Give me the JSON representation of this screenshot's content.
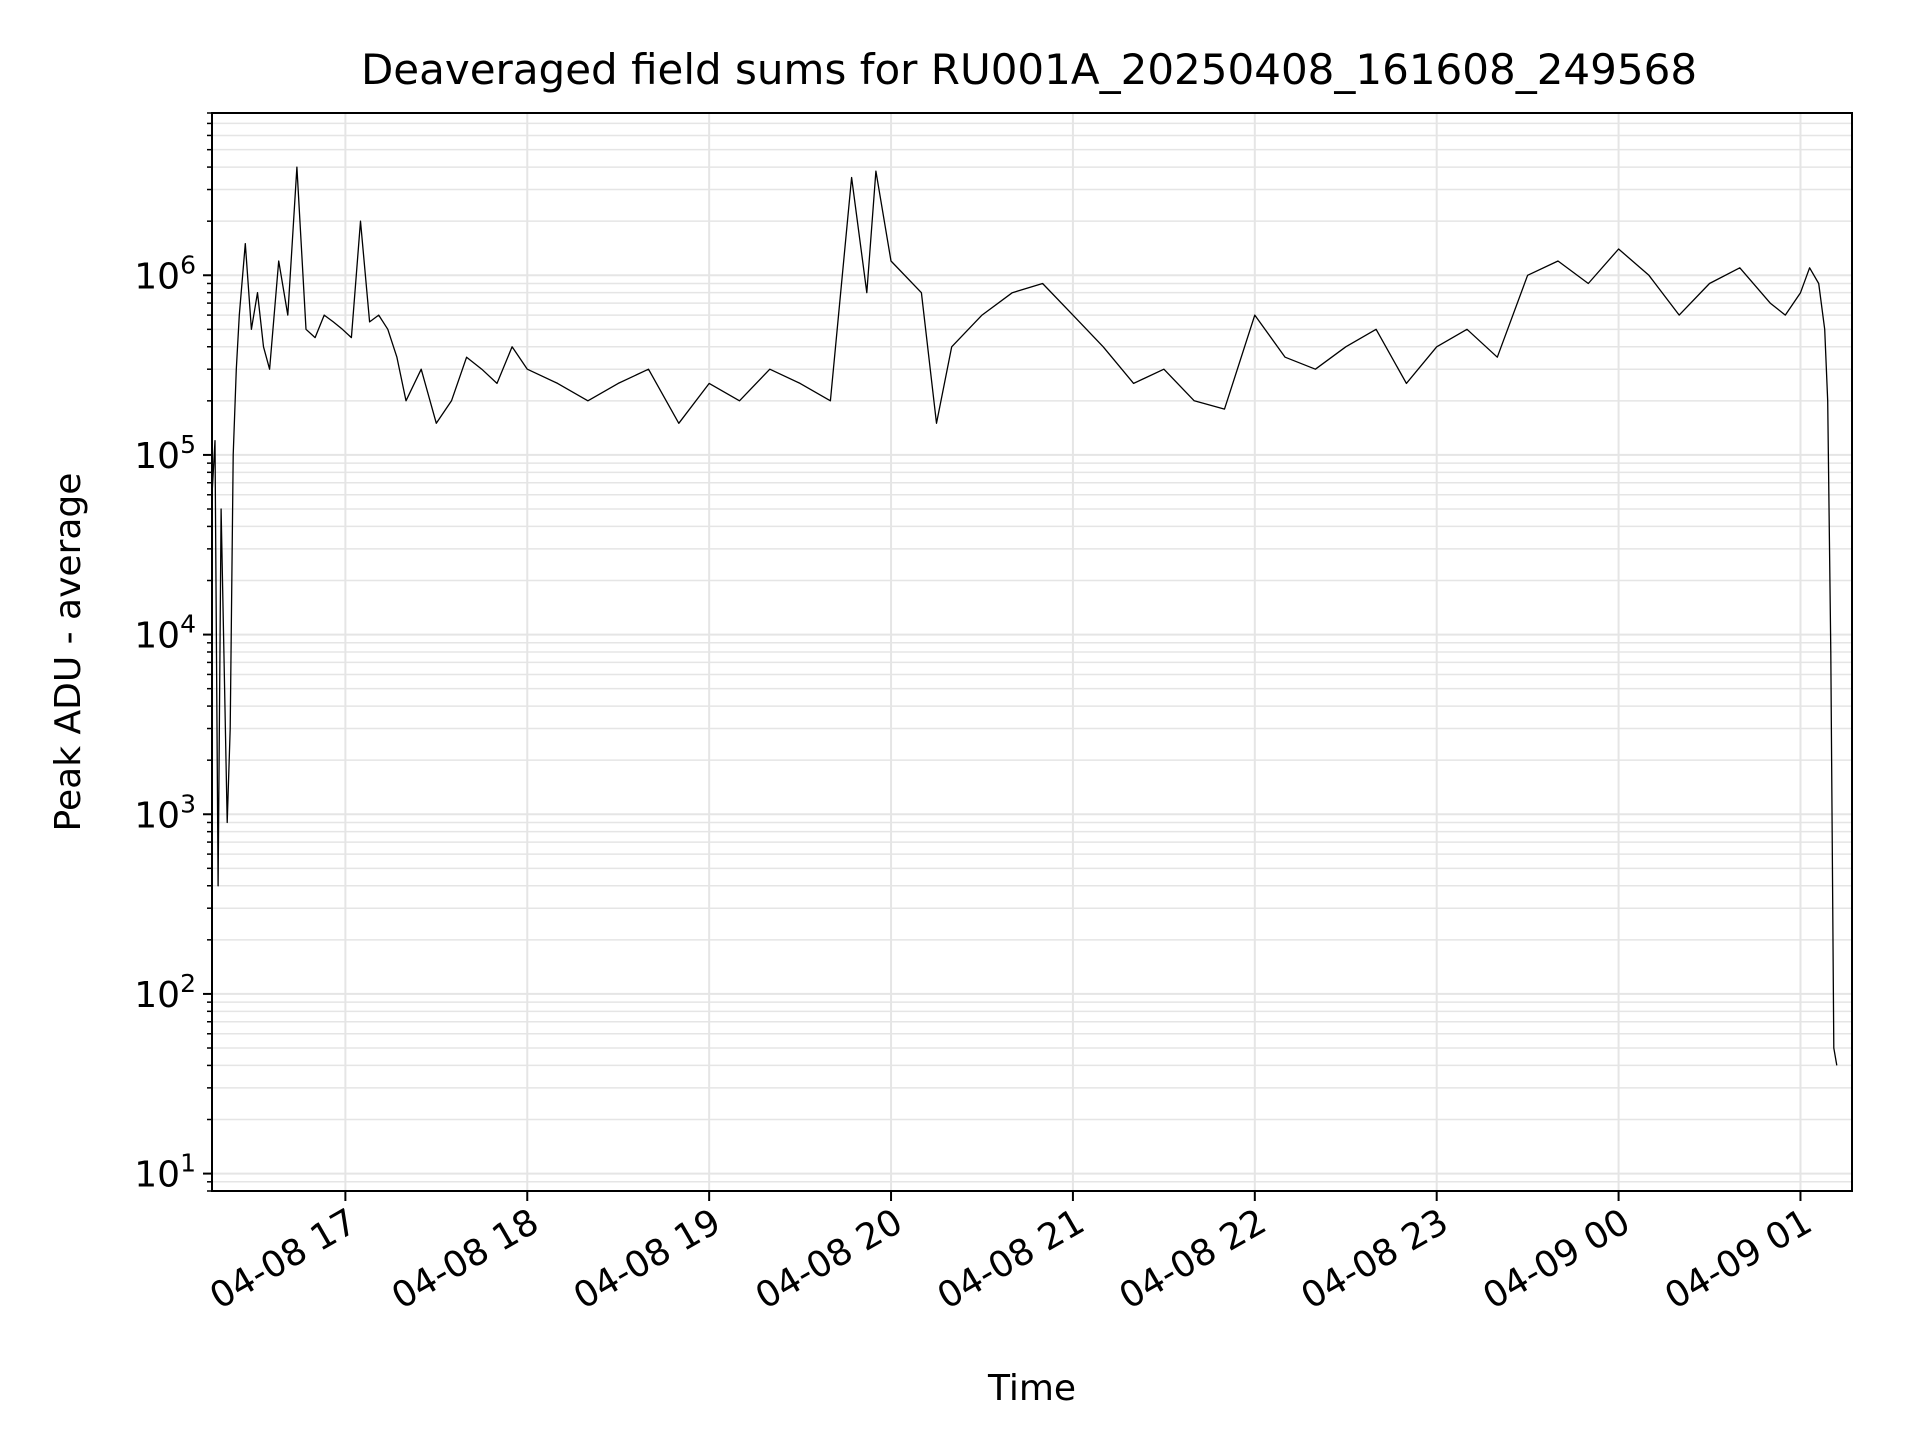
{
  "chart_data": {
    "type": "line",
    "title": "Deaveraged field sums for RU001A_20250408_161608_249568",
    "xlabel": "Time",
    "ylabel": "Peak ADU - average",
    "yscale": "log",
    "ylim": [
      8,
      8000000
    ],
    "xlim": [
      "2025-04-08T16:16",
      "2025-04-09T01:17"
    ],
    "grid": "major and minor",
    "line_color": "#000000",
    "grid_color": "#e5e5e5",
    "x_ticks": [
      {
        "t": "2025-04-08T17:00",
        "label": "04-08 17"
      },
      {
        "t": "2025-04-08T18:00",
        "label": "04-08 18"
      },
      {
        "t": "2025-04-08T19:00",
        "label": "04-08 19"
      },
      {
        "t": "2025-04-08T20:00",
        "label": "04-08 20"
      },
      {
        "t": "2025-04-08T21:00",
        "label": "04-08 21"
      },
      {
        "t": "2025-04-08T22:00",
        "label": "04-08 22"
      },
      {
        "t": "2025-04-08T23:00",
        "label": "04-08 23"
      },
      {
        "t": "2025-04-09T00:00",
        "label": "04-09 00"
      },
      {
        "t": "2025-04-09T01:00",
        "label": "04-09 01"
      }
    ],
    "y_ticks": [
      {
        "value": 10,
        "base": "10",
        "exp": "1"
      },
      {
        "value": 100,
        "base": "10",
        "exp": "2"
      },
      {
        "value": 1000,
        "base": "10",
        "exp": "3"
      },
      {
        "value": 10000,
        "base": "10",
        "exp": "4"
      },
      {
        "value": 100000,
        "base": "10",
        "exp": "5"
      },
      {
        "value": 1000000,
        "base": "10",
        "exp": "6"
      }
    ],
    "series": [
      {
        "x": [
          "2025-04-08T16:16",
          "2025-04-08T16:17",
          "2025-04-08T16:18",
          "2025-04-08T16:19",
          "2025-04-08T16:20",
          "2025-04-08T16:21",
          "2025-04-08T16:22",
          "2025-04-08T16:23",
          "2025-04-08T16:24",
          "2025-04-08T16:25",
          "2025-04-08T16:27",
          "2025-04-08T16:29",
          "2025-04-08T16:31",
          "2025-04-08T16:33",
          "2025-04-08T16:35",
          "2025-04-08T16:38",
          "2025-04-08T16:41",
          "2025-04-08T16:44",
          "2025-04-08T16:47",
          "2025-04-08T16:50",
          "2025-04-08T16:53",
          "2025-04-08T16:56",
          "2025-04-08T16:59",
          "2025-04-08T17:02",
          "2025-04-08T17:05",
          "2025-04-08T17:08",
          "2025-04-08T17:11",
          "2025-04-08T17:14",
          "2025-04-08T17:17",
          "2025-04-08T17:20",
          "2025-04-08T17:25",
          "2025-04-08T17:30",
          "2025-04-08T17:35",
          "2025-04-08T17:40",
          "2025-04-08T17:45",
          "2025-04-08T17:50",
          "2025-04-08T17:55",
          "2025-04-08T18:00",
          "2025-04-08T18:10",
          "2025-04-08T18:20",
          "2025-04-08T18:30",
          "2025-04-08T18:40",
          "2025-04-08T18:50",
          "2025-04-08T19:00",
          "2025-04-08T19:10",
          "2025-04-08T19:20",
          "2025-04-08T19:30",
          "2025-04-08T19:40",
          "2025-04-08T19:47",
          "2025-04-08T19:52",
          "2025-04-08T19:55",
          "2025-04-08T20:00",
          "2025-04-08T20:10",
          "2025-04-08T20:15",
          "2025-04-08T20:20",
          "2025-04-08T20:30",
          "2025-04-08T20:40",
          "2025-04-08T20:50",
          "2025-04-08T21:00",
          "2025-04-08T21:10",
          "2025-04-08T21:20",
          "2025-04-08T21:30",
          "2025-04-08T21:40",
          "2025-04-08T21:50",
          "2025-04-08T22:00",
          "2025-04-08T22:10",
          "2025-04-08T22:20",
          "2025-04-08T22:30",
          "2025-04-08T22:40",
          "2025-04-08T22:50",
          "2025-04-08T23:00",
          "2025-04-08T23:10",
          "2025-04-08T23:20",
          "2025-04-08T23:30",
          "2025-04-08T23:40",
          "2025-04-08T23:50",
          "2025-04-09T00:00",
          "2025-04-09T00:10",
          "2025-04-09T00:20",
          "2025-04-09T00:30",
          "2025-04-09T00:40",
          "2025-04-09T00:50",
          "2025-04-09T00:55",
          "2025-04-09T01:00",
          "2025-04-09T01:03",
          "2025-04-09T01:06",
          "2025-04-09T01:08",
          "2025-04-09T01:09",
          "2025-04-09T01:10",
          "2025-04-09T01:11",
          "2025-04-09T01:12"
        ],
        "y": [
          60000,
          120000,
          400,
          50000,
          7000,
          900,
          3000,
          100000,
          300000,
          600000,
          1500000,
          500000,
          800000,
          400000,
          300000,
          1200000,
          600000,
          4000000,
          500000,
          450000,
          600000,
          550000,
          500000,
          450000,
          2000000,
          550000,
          600000,
          500000,
          350000,
          200000,
          300000,
          150000,
          200000,
          350000,
          300000,
          250000,
          400000,
          300000,
          250000,
          200000,
          250000,
          300000,
          150000,
          250000,
          200000,
          300000,
          250000,
          200000,
          3500000,
          800000,
          3800000,
          1200000,
          800000,
          150000,
          400000,
          600000,
          800000,
          900000,
          600000,
          400000,
          250000,
          300000,
          200000,
          180000,
          600000,
          350000,
          300000,
          400000,
          500000,
          250000,
          400000,
          500000,
          350000,
          1000000,
          1200000,
          900000,
          1400000,
          1000000,
          600000,
          900000,
          1100000,
          700000,
          600000,
          800000,
          1100000,
          900000,
          500000,
          200000,
          8000,
          50,
          40
        ]
      }
    ]
  }
}
